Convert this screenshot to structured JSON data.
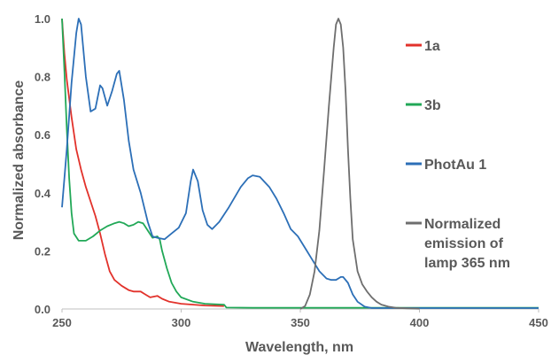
{
  "chart_data": {
    "type": "line",
    "xlabel": "Wavelength, nm",
    "ylabel": "Normalized absorbance",
    "xlim": [
      250,
      450
    ],
    "ylim": [
      0,
      1
    ],
    "x_ticks": [
      "250",
      "300",
      "350",
      "400",
      "450"
    ],
    "y_ticks": [
      "0.0",
      "0.2",
      "0.4",
      "0.6",
      "0.8",
      "1.0"
    ],
    "grid": false,
    "legend_position": "right",
    "series": [
      {
        "name": "1a",
        "color": "#e2322b",
        "points": [
          [
            250,
            1.0
          ],
          [
            251,
            0.88
          ],
          [
            252,
            0.79
          ],
          [
            254,
            0.66
          ],
          [
            256,
            0.55
          ],
          [
            258,
            0.48
          ],
          [
            260,
            0.42
          ],
          [
            262,
            0.37
          ],
          [
            264,
            0.32
          ],
          [
            266,
            0.26
          ],
          [
            268,
            0.19
          ],
          [
            270,
            0.13
          ],
          [
            272,
            0.1
          ],
          [
            275,
            0.08
          ],
          [
            278,
            0.065
          ],
          [
            280,
            0.06
          ],
          [
            283,
            0.06
          ],
          [
            285,
            0.05
          ],
          [
            287,
            0.04
          ],
          [
            290,
            0.045
          ],
          [
            292,
            0.035
          ],
          [
            295,
            0.025
          ],
          [
            300,
            0.018
          ],
          [
            310,
            0.012
          ],
          [
            318,
            0.01
          ]
        ]
      },
      {
        "name": "3b",
        "color": "#21a857",
        "points": [
          [
            250,
            1.0
          ],
          [
            251,
            0.82
          ],
          [
            252,
            0.62
          ],
          [
            253,
            0.45
          ],
          [
            254,
            0.33
          ],
          [
            255,
            0.26
          ],
          [
            257,
            0.235
          ],
          [
            260,
            0.235
          ],
          [
            263,
            0.25
          ],
          [
            266,
            0.27
          ],
          [
            269,
            0.285
          ],
          [
            272,
            0.295
          ],
          [
            274,
            0.3
          ],
          [
            276,
            0.295
          ],
          [
            278,
            0.285
          ],
          [
            280,
            0.29
          ],
          [
            282,
            0.3
          ],
          [
            284,
            0.295
          ],
          [
            286,
            0.27
          ],
          [
            288,
            0.245
          ],
          [
            290,
            0.25
          ],
          [
            291,
            0.24
          ],
          [
            292,
            0.2
          ],
          [
            294,
            0.14
          ],
          [
            296,
            0.09
          ],
          [
            298,
            0.06
          ],
          [
            300,
            0.04
          ],
          [
            305,
            0.025
          ],
          [
            310,
            0.018
          ],
          [
            318,
            0.015
          ],
          [
            319,
            0.005
          ],
          [
            330,
            0.004
          ],
          [
            400,
            0.004
          ],
          [
            450,
            0.004
          ]
        ]
      },
      {
        "name": "PhotAu 1",
        "color": "#2c6fb7",
        "points": [
          [
            250,
            0.35
          ],
          [
            252,
            0.55
          ],
          [
            254,
            0.78
          ],
          [
            256,
            0.95
          ],
          [
            257,
            1.0
          ],
          [
            258,
            0.98
          ],
          [
            260,
            0.8
          ],
          [
            262,
            0.68
          ],
          [
            264,
            0.69
          ],
          [
            266,
            0.77
          ],
          [
            267,
            0.76
          ],
          [
            269,
            0.7
          ],
          [
            271,
            0.75
          ],
          [
            273,
            0.81
          ],
          [
            274,
            0.82
          ],
          [
            276,
            0.72
          ],
          [
            278,
            0.58
          ],
          [
            280,
            0.48
          ],
          [
            283,
            0.4
          ],
          [
            286,
            0.3
          ],
          [
            288,
            0.25
          ],
          [
            290,
            0.245
          ],
          [
            293,
            0.24
          ],
          [
            296,
            0.26
          ],
          [
            299,
            0.28
          ],
          [
            302,
            0.33
          ],
          [
            304,
            0.44
          ],
          [
            305,
            0.48
          ],
          [
            307,
            0.44
          ],
          [
            309,
            0.34
          ],
          [
            311,
            0.29
          ],
          [
            313,
            0.275
          ],
          [
            316,
            0.3
          ],
          [
            320,
            0.35
          ],
          [
            325,
            0.42
          ],
          [
            328,
            0.45
          ],
          [
            330,
            0.46
          ],
          [
            333,
            0.455
          ],
          [
            337,
            0.42
          ],
          [
            340,
            0.38
          ],
          [
            343,
            0.33
          ],
          [
            346,
            0.275
          ],
          [
            349,
            0.25
          ],
          [
            352,
            0.21
          ],
          [
            355,
            0.17
          ],
          [
            358,
            0.13
          ],
          [
            361,
            0.105
          ],
          [
            363,
            0.1
          ],
          [
            365,
            0.1
          ],
          [
            367,
            0.11
          ],
          [
            368,
            0.11
          ],
          [
            370,
            0.09
          ],
          [
            372,
            0.05
          ],
          [
            374,
            0.025
          ],
          [
            377,
            0.008
          ],
          [
            380,
            0.003
          ],
          [
            400,
            0.003
          ],
          [
            450,
            0.003
          ]
        ]
      },
      {
        "name": "Normalized emission of lamp 365 nm",
        "label_lines": [
          "Normalized",
          "emission of",
          "lamp 365 nm"
        ],
        "color": "#6e6e6e",
        "points": [
          [
            350,
            0.0
          ],
          [
            352,
            0.01
          ],
          [
            354,
            0.05
          ],
          [
            356,
            0.13
          ],
          [
            358,
            0.27
          ],
          [
            360,
            0.48
          ],
          [
            362,
            0.7
          ],
          [
            364,
            0.9
          ],
          [
            365,
            0.98
          ],
          [
            366,
            1.0
          ],
          [
            367,
            0.98
          ],
          [
            368,
            0.9
          ],
          [
            369,
            0.75
          ],
          [
            370,
            0.55
          ],
          [
            371,
            0.38
          ],
          [
            372,
            0.24
          ],
          [
            374,
            0.13
          ],
          [
            376,
            0.085
          ],
          [
            378,
            0.06
          ],
          [
            380,
            0.04
          ],
          [
            382,
            0.025
          ],
          [
            384,
            0.015
          ],
          [
            387,
            0.008
          ],
          [
            390,
            0.004
          ],
          [
            395,
            0.002
          ],
          [
            400,
            0.001
          ]
        ]
      }
    ]
  }
}
